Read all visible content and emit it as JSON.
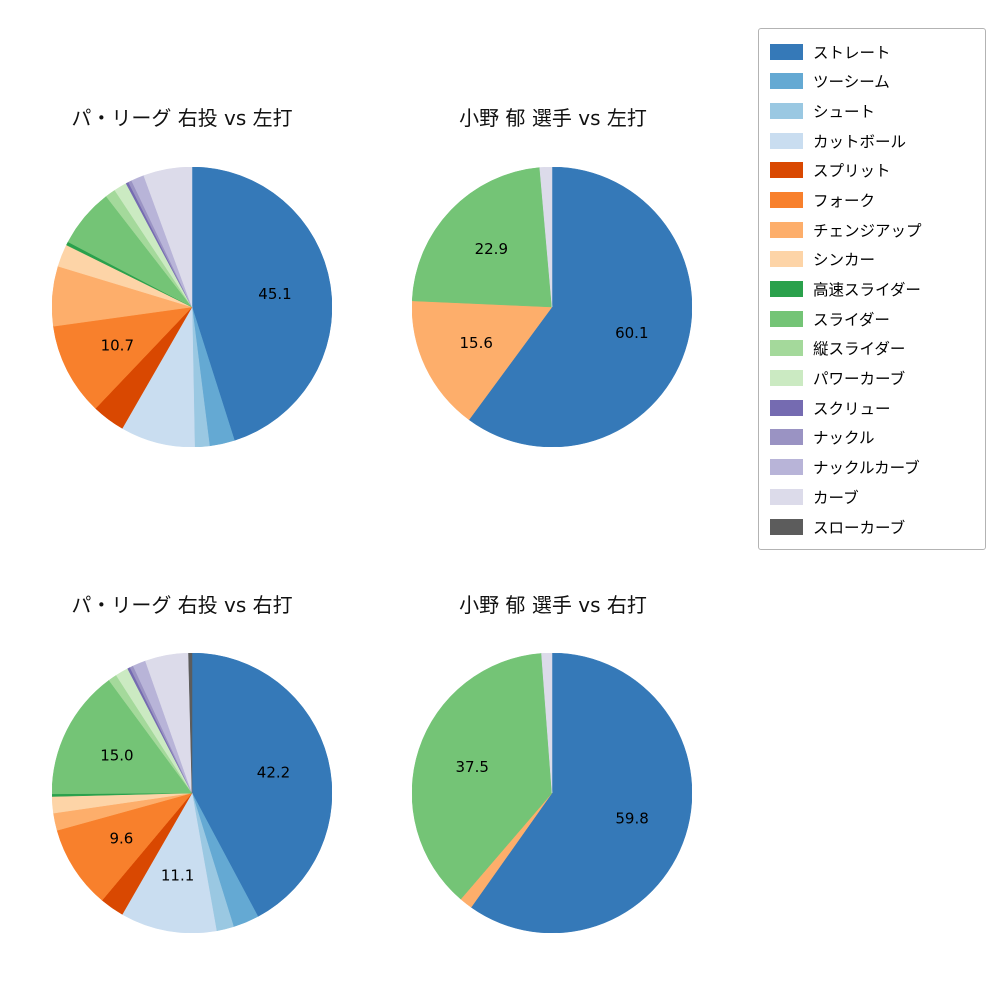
{
  "figure": {
    "background_color": "#ffffff"
  },
  "settings": {
    "label_threshold": 9.5,
    "value_label_color": "#000000",
    "value_label_distance": 0.6,
    "start_angle_deg": 90,
    "direction": "clockwise"
  },
  "legend": {
    "position": "upper right",
    "items": [
      {
        "label": "ストレート",
        "color": "#3579b8"
      },
      {
        "label": "ツーシーム",
        "color": "#64a9d3"
      },
      {
        "label": "シュート",
        "color": "#9ac8e2"
      },
      {
        "label": "カットボール",
        "color": "#c9ddf0"
      },
      {
        "label": "スプリット",
        "color": "#d94801"
      },
      {
        "label": "フォーク",
        "color": "#f8802c"
      },
      {
        "label": "チェンジアップ",
        "color": "#fdae6b"
      },
      {
        "label": "シンカー",
        "color": "#fdd4a7"
      },
      {
        "label": "高速スライダー",
        "color": "#2aa14c"
      },
      {
        "label": "スライダー",
        "color": "#74c476"
      },
      {
        "label": "縦スライダー",
        "color": "#a4d99b"
      },
      {
        "label": "パワーカーブ",
        "color": "#cbeac2"
      },
      {
        "label": "スクリュー",
        "color": "#756bb1"
      },
      {
        "label": "ナックル",
        "color": "#9a93c3"
      },
      {
        "label": "ナックルカーブ",
        "color": "#b8b4d8"
      },
      {
        "label": "カーブ",
        "color": "#dcdbea"
      },
      {
        "label": "スローカーブ",
        "color": "#5c5c5c"
      }
    ]
  },
  "chart_data": [
    {
      "type": "pie",
      "title": "パ・リーグ 右投 vs 左打",
      "visible_value_labels": [
        "45.1",
        "10.7"
      ],
      "slices": [
        {
          "label": "ストレート",
          "value": 45.1
        },
        {
          "label": "ツーシーム",
          "value": 2.9
        },
        {
          "label": "シュート",
          "value": 1.7
        },
        {
          "label": "カットボール",
          "value": 8.6
        },
        {
          "label": "スプリット",
          "value": 3.8
        },
        {
          "label": "フォーク",
          "value": 10.7
        },
        {
          "label": "チェンジアップ",
          "value": 6.9
        },
        {
          "label": "シンカー",
          "value": 2.6
        },
        {
          "label": "高速スライダー",
          "value": 0.4
        },
        {
          "label": "スライダー",
          "value": 6.8
        },
        {
          "label": "縦スライダー",
          "value": 1.2
        },
        {
          "label": "パワーカーブ",
          "value": 1.5
        },
        {
          "label": "スクリュー",
          "value": 0.3
        },
        {
          "label": "ナックル",
          "value": 0.4
        },
        {
          "label": "ナックルカーブ",
          "value": 1.5
        },
        {
          "label": "カーブ",
          "value": 5.6
        }
      ]
    },
    {
      "type": "pie",
      "title": "小野 郁 選手 vs 左打",
      "visible_value_labels": [
        "60.1",
        "15.6",
        "22.9"
      ],
      "slices": [
        {
          "label": "ストレート",
          "value": 60.1
        },
        {
          "label": "チェンジアップ",
          "value": 15.6
        },
        {
          "label": "スライダー",
          "value": 22.9
        },
        {
          "label": "カーブ",
          "value": 1.4
        }
      ]
    },
    {
      "type": "pie",
      "title": "パ・リーグ 右投 vs 右打",
      "visible_value_labels": [
        "42.2",
        "11.1",
        "9.6",
        "15.0"
      ],
      "slices": [
        {
          "label": "ストレート",
          "value": 42.2
        },
        {
          "label": "ツーシーム",
          "value": 3.0
        },
        {
          "label": "シュート",
          "value": 2.0
        },
        {
          "label": "カットボール",
          "value": 11.1
        },
        {
          "label": "スプリット",
          "value": 2.8
        },
        {
          "label": "フォーク",
          "value": 9.6
        },
        {
          "label": "チェンジアップ",
          "value": 2.0
        },
        {
          "label": "シンカー",
          "value": 1.9
        },
        {
          "label": "高速スライダー",
          "value": 0.3
        },
        {
          "label": "スライダー",
          "value": 15.0
        },
        {
          "label": "縦スライダー",
          "value": 1.0
        },
        {
          "label": "パワーカーブ",
          "value": 1.5
        },
        {
          "label": "スクリュー",
          "value": 0.3
        },
        {
          "label": "ナックル",
          "value": 0.4
        },
        {
          "label": "ナックルカーブ",
          "value": 1.5
        },
        {
          "label": "カーブ",
          "value": 5.0
        },
        {
          "label": "スローカーブ",
          "value": 0.4
        }
      ]
    },
    {
      "type": "pie",
      "title": "小野 郁 選手 vs 右打",
      "visible_value_labels": [
        "59.8",
        "37.5"
      ],
      "slices": [
        {
          "label": "ストレート",
          "value": 59.8
        },
        {
          "label": "チェンジアップ",
          "value": 1.5
        },
        {
          "label": "スライダー",
          "value": 37.5
        },
        {
          "label": "カーブ",
          "value": 1.2
        }
      ]
    }
  ]
}
